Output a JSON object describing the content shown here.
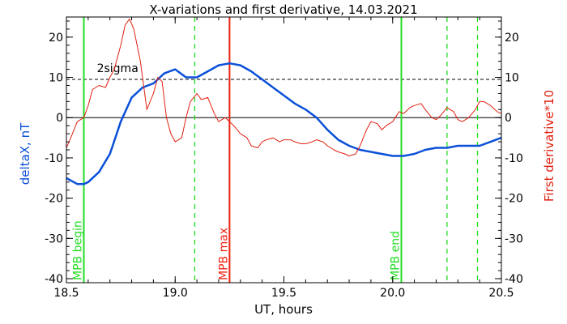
{
  "chart_data": {
    "type": "line",
    "title": "X-variations and first derivative, 14.03.2021",
    "xlabel": "UT, hours",
    "ylabel_left": "deltaX, nT",
    "ylabel_right": "First derivative*10",
    "xlim": [
      18.5,
      20.5
    ],
    "ylim": [
      -41,
      25
    ],
    "x_ticks": [
      18.5,
      19.0,
      19.5,
      20.0,
      20.5
    ],
    "x_tick_labels": [
      "18.5",
      "19.0",
      "19.5",
      "20.0",
      "20.5"
    ],
    "y_ticks": [
      -40,
      -30,
      -20,
      -10,
      0,
      10,
      20
    ],
    "y_tick_labels": [
      "-40",
      "-30",
      "-20",
      "-10",
      "0",
      "10",
      "20"
    ],
    "colors": {
      "deltaX": "#0a50d8",
      "derivative": "#e02010",
      "mpb": "#22dd22",
      "max": "#ee2211",
      "sigma": "#000000",
      "zero": "#000000"
    },
    "series": [
      {
        "name": "deltaX, nT",
        "axis": "left",
        "x": [
          18.5,
          18.55,
          18.58,
          18.6,
          18.65,
          18.7,
          18.75,
          18.8,
          18.85,
          18.9,
          18.95,
          19.0,
          19.05,
          19.1,
          19.15,
          19.2,
          19.25,
          19.3,
          19.35,
          19.4,
          19.45,
          19.5,
          19.55,
          19.6,
          19.65,
          19.7,
          19.75,
          19.8,
          19.85,
          19.9,
          19.95,
          20.0,
          20.05,
          20.1,
          20.15,
          20.2,
          20.25,
          20.3,
          20.35,
          20.4,
          20.45,
          20.5
        ],
        "values": [
          -15,
          -16.5,
          -16.5,
          -16,
          -13.5,
          -9,
          -1,
          5,
          7.5,
          8.5,
          11,
          12,
          10,
          10,
          11.5,
          13,
          13.5,
          13,
          11.5,
          9.5,
          7.5,
          5.5,
          3.5,
          2,
          0,
          -3,
          -5.5,
          -7,
          -8,
          -8.5,
          -9,
          -9.5,
          -9.5,
          -9,
          -8,
          -7.5,
          -7.5,
          -7,
          -7,
          -7,
          -6,
          -5
        ]
      },
      {
        "name": "First derivative*10",
        "axis": "right",
        "x": [
          18.5,
          18.52,
          18.55,
          18.58,
          18.6,
          18.62,
          18.65,
          18.68,
          18.7,
          18.72,
          18.75,
          18.77,
          18.79,
          18.81,
          18.84,
          18.87,
          18.9,
          18.92,
          18.94,
          18.96,
          18.98,
          19.0,
          19.03,
          19.05,
          19.07,
          19.1,
          19.12,
          19.15,
          19.18,
          19.2,
          19.23,
          19.25,
          19.27,
          19.3,
          19.33,
          19.35,
          19.38,
          19.4,
          19.42,
          19.45,
          19.48,
          19.5,
          19.53,
          19.55,
          19.58,
          19.6,
          19.63,
          19.65,
          19.68,
          19.7,
          19.73,
          19.75,
          19.78,
          19.8,
          19.83,
          19.85,
          19.88,
          19.9,
          19.93,
          19.95,
          19.97,
          20.0,
          20.03,
          20.05,
          20.08,
          20.1,
          20.13,
          20.15,
          20.18,
          20.2,
          20.22,
          20.25,
          20.28,
          20.3,
          20.32,
          20.35,
          20.38,
          20.4,
          20.42,
          20.45,
          20.48,
          20.5
        ],
        "values": [
          -7.5,
          -5,
          -1,
          0,
          3,
          7,
          8,
          7.5,
          10,
          12,
          18,
          23,
          24.5,
          22,
          14,
          2,
          6,
          10,
          9,
          0,
          -4,
          -6,
          -5,
          0,
          4,
          6,
          4.5,
          5,
          1,
          -1,
          0,
          -1,
          -2,
          -4,
          -5,
          -7,
          -7.5,
          -6,
          -5.5,
          -5,
          -6,
          -5.5,
          -5.5,
          -6,
          -6.5,
          -6.5,
          -6,
          -5.5,
          -6,
          -7,
          -8,
          -8.5,
          -9,
          -9.5,
          -9,
          -7,
          -3,
          -1,
          -1.5,
          -3,
          -2,
          -1,
          1.5,
          1,
          2.5,
          3,
          3.5,
          2,
          0,
          -0.5,
          0.5,
          2.5,
          1.5,
          -0.5,
          -1,
          0,
          2,
          4,
          4,
          3,
          1.5,
          1
        ]
      }
    ],
    "hlines": {
      "sigma_value": 9.5,
      "sigma_label": "2sigma",
      "zero_value": 0
    },
    "markers": [
      {
        "x": 18.58,
        "label": "MPB begin",
        "style": "solid",
        "color": "mpb"
      },
      {
        "x": 19.25,
        "label": "MPB max",
        "style": "solid",
        "color": "max"
      },
      {
        "x": 20.04,
        "label": "MPB end",
        "style": "solid",
        "color": "mpb"
      },
      {
        "x": 19.09,
        "label": "",
        "style": "dashed",
        "color": "mpb"
      },
      {
        "x": 20.25,
        "label": "",
        "style": "dashed",
        "color": "mpb"
      },
      {
        "x": 20.39,
        "label": "",
        "style": "dashed",
        "color": "mpb"
      }
    ]
  }
}
